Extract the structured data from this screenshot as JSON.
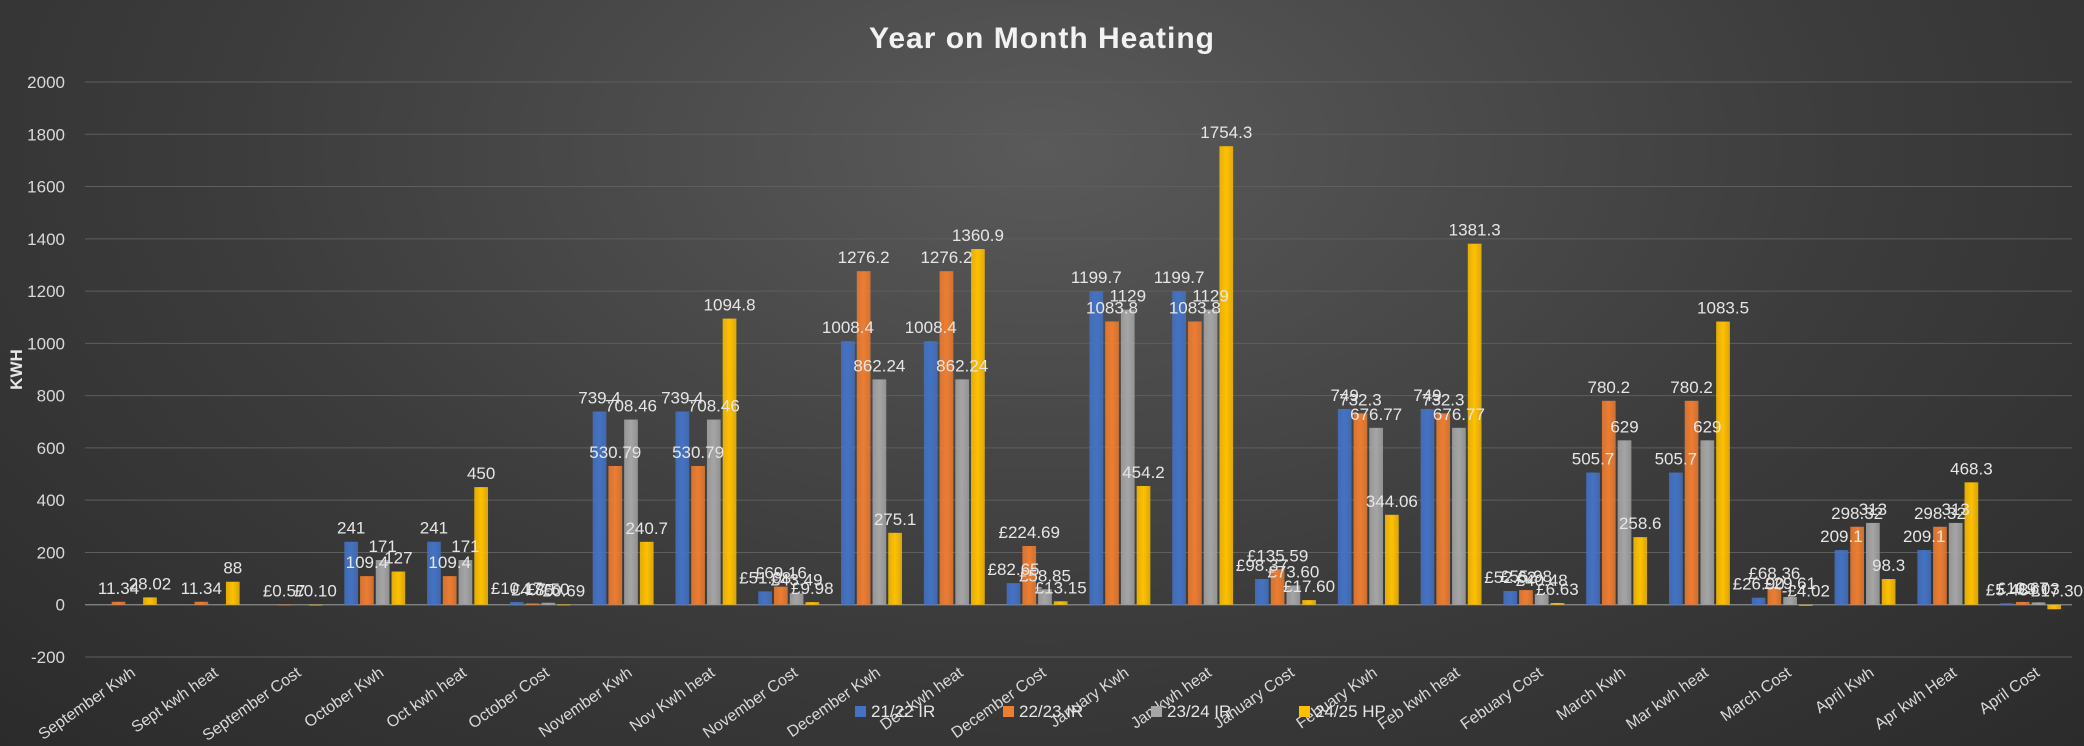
{
  "chart_data": {
    "type": "bar",
    "title": "Year on Month Heating",
    "xlabel": "",
    "ylabel": "KWH",
    "ylim": [
      -200,
      2000
    ],
    "yticks": [
      -200,
      0,
      200,
      400,
      600,
      800,
      1000,
      1200,
      1400,
      1600,
      1800,
      2000
    ],
    "grid": true,
    "legend_position": "bottom",
    "categories": [
      "September Kwh",
      "Sept kwh heat",
      "September Cost",
      "October Kwh",
      "Oct kwh heat",
      "October Cost",
      "November Kwh",
      "Nov Kwh heat",
      "November Cost",
      "December Kwh",
      "Dec kwh heat",
      "December Cost",
      "January Kwh",
      "Jan kwh heat",
      "January Cost",
      "Febuary Kwh",
      "Feb kwh heat",
      "Febuary Cost",
      "March Kwh",
      "Mar kwh heat",
      "March Cost",
      "April Kwh",
      "Apr kwh Heat",
      "April Cost"
    ],
    "series": [
      {
        "name": "21/22 IR",
        "color": "#4472c4",
        "values": [
          null,
          null,
          null,
          241,
          241,
          10.17,
          739.4,
          739.4,
          51.08,
          1008.4,
          1008.4,
          82.65,
          1199.7,
          1199.7,
          98.37,
          749,
          749,
          52.62,
          505.7,
          505.7,
          26.9,
          209.1,
          209.1,
          5.48
        ],
        "labels": [
          "",
          "",
          "",
          "241",
          "241",
          "£10.17",
          "739.4",
          "739.4",
          "£51.08",
          "1008.4",
          "1008.4",
          "£82.65",
          "1199.7",
          "1199.7",
          "£98.37",
          "749",
          "749",
          "£52.62",
          "505.7",
          "505.7",
          "£26.90",
          "209.1",
          "209.1",
          "£5.48"
        ]
      },
      {
        "name": "22/23 IR",
        "color": "#ed7d31",
        "values": [
          11.34,
          11.34,
          0.57,
          109.4,
          109.4,
          4.85,
          530.79,
          530.79,
          69.16,
          1276.2,
          1276.2,
          224.69,
          1083.8,
          1083.8,
          135.59,
          732.3,
          732.3,
          55.98,
          780.2,
          780.2,
          68.36,
          298.32,
          298.32,
          10.67
        ],
        "labels": [
          "11.34",
          "11.34",
          "£0.57",
          "109.4",
          "109.4",
          "£4.85",
          "530.79",
          "530.79",
          "£69.16",
          "1276.2",
          "1276.2",
          "£224.69",
          "1083.8",
          "1083.8",
          "£135.59",
          "732.3",
          "732.3",
          "£55.98",
          "780.2",
          "780.2",
          "£68.36",
          "298.32",
          "298.32",
          "£10.67"
        ]
      },
      {
        "name": "23/24 IR",
        "color": "#a5a5a5",
        "values": [
          null,
          null,
          null,
          171,
          171,
          7.5,
          708.46,
          708.46,
          43.49,
          862.24,
          862.24,
          58.85,
          1129,
          1129,
          73.6,
          676.77,
          676.77,
          40.48,
          629,
          629,
          29.61,
          313,
          313,
          9.03
        ],
        "labels": [
          "",
          "",
          "",
          "171",
          "171",
          "£7.50",
          "708.46",
          "708.46",
          "£43.49",
          "862.24",
          "862.24",
          "£58.85",
          "1129",
          "1129",
          "£73.60",
          "676.77",
          "676.77",
          "£40.48",
          "629",
          "629",
          "£29.61",
          "313",
          "313",
          "£9.03"
        ]
      },
      {
        "name": "24/25 HP",
        "color": "#ffc000",
        "values": [
          28.02,
          88,
          0.1,
          127,
          450,
          0.69,
          240.7,
          1094.8,
          9.98,
          275.1,
          1360.9,
          13.15,
          454.2,
          1754.3,
          17.6,
          344.06,
          1381.3,
          6.63,
          258.6,
          1083.5,
          -4.02,
          98.3,
          468.3,
          -17.3
        ],
        "labels": [
          "28.02",
          "88",
          "£0.10",
          "127",
          "450",
          "£0.69",
          "240.7",
          "1094.8",
          "£9.98",
          "275.1",
          "1360.9",
          "£13.15",
          "454.2",
          "1754.3",
          "£17.60",
          "344.06",
          "1381.3",
          "£6.63",
          "258.6",
          "1083.5",
          "-£4.02",
          "98.3",
          "468.3",
          "-£17.30"
        ]
      }
    ]
  }
}
